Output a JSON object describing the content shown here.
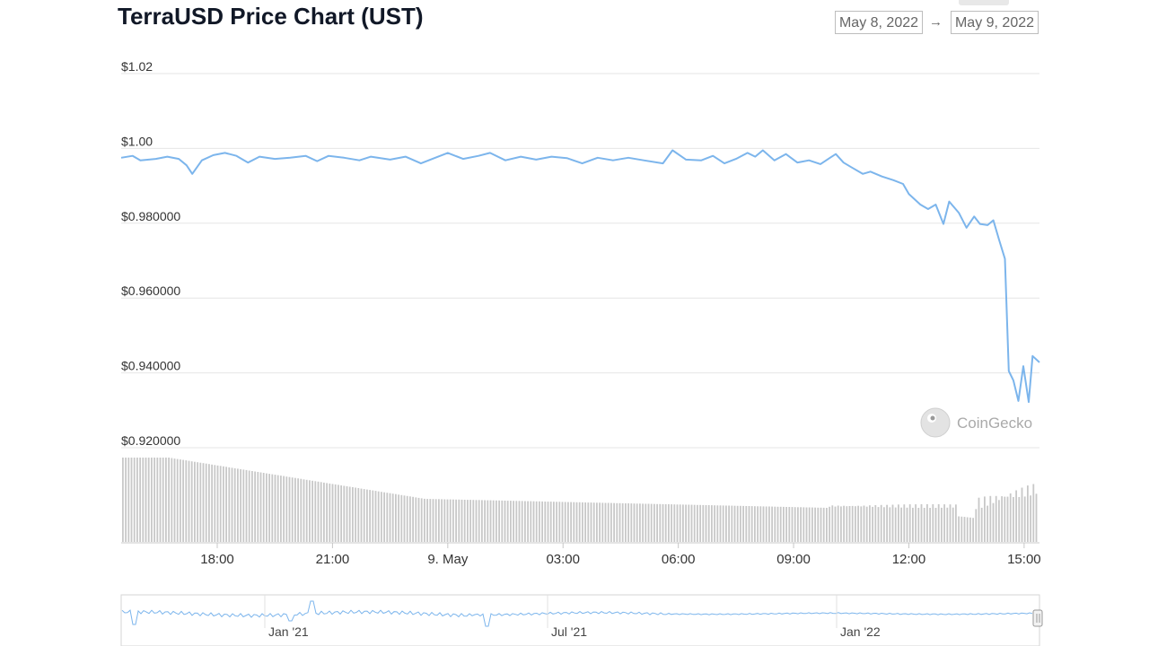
{
  "header": {
    "title": "TerraUSD Price Chart (UST)",
    "date_from": "May 8, 2022",
    "date_to": "May 9, 2022",
    "arrow": "→"
  },
  "watermark": {
    "text": "CoinGecko",
    "icon": "coingecko-logo-icon"
  },
  "colors": {
    "line": "#7cb5ec",
    "volume": "#c8c8c8",
    "grid": "#e6e6e6"
  },
  "chart_data": {
    "type": "line",
    "title": "TerraUSD Price Chart (UST)",
    "yaxis": {
      "min": 0.92,
      "max": 1.02,
      "ticks": [
        {
          "value": 1.02,
          "label": "$1.02"
        },
        {
          "value": 1.0,
          "label": "$1.00"
        },
        {
          "value": 0.98,
          "label": "$0.980000"
        },
        {
          "value": 0.96,
          "label": "$0.960000"
        },
        {
          "value": 0.94,
          "label": "$0.940000"
        },
        {
          "value": 0.92,
          "label": "$0.920000"
        }
      ]
    },
    "xaxis": {
      "start_hour": 15.5,
      "end_hour": 39.4,
      "ticks": [
        {
          "hour": 18,
          "label": "18:00"
        },
        {
          "hour": 21,
          "label": "21:00"
        },
        {
          "hour": 24,
          "label": "9. May"
        },
        {
          "hour": 27,
          "label": "03:00"
        },
        {
          "hour": 30,
          "label": "06:00"
        },
        {
          "hour": 33,
          "label": "09:00"
        },
        {
          "hour": 36,
          "label": "12:00"
        },
        {
          "hour": 39,
          "label": "15:00"
        }
      ]
    },
    "series": [
      {
        "points": [
          [
            15.5,
            0.9975
          ],
          [
            15.8,
            0.998
          ],
          [
            16.0,
            0.9968
          ],
          [
            16.4,
            0.9972
          ],
          [
            16.7,
            0.9978
          ],
          [
            17.0,
            0.9972
          ],
          [
            17.2,
            0.9955
          ],
          [
            17.35,
            0.9932
          ],
          [
            17.6,
            0.9968
          ],
          [
            17.9,
            0.9982
          ],
          [
            18.2,
            0.9988
          ],
          [
            18.5,
            0.998
          ],
          [
            18.8,
            0.9962
          ],
          [
            19.1,
            0.9978
          ],
          [
            19.5,
            0.9972
          ],
          [
            19.9,
            0.9975
          ],
          [
            20.3,
            0.998
          ],
          [
            20.6,
            0.9966
          ],
          [
            20.9,
            0.998
          ],
          [
            21.3,
            0.9975
          ],
          [
            21.7,
            0.9968
          ],
          [
            22.0,
            0.9978
          ],
          [
            22.5,
            0.997
          ],
          [
            22.9,
            0.9978
          ],
          [
            23.3,
            0.996
          ],
          [
            23.6,
            0.9972
          ],
          [
            24.0,
            0.9988
          ],
          [
            24.4,
            0.9972
          ],
          [
            24.8,
            0.998
          ],
          [
            25.1,
            0.9988
          ],
          [
            25.5,
            0.9968
          ],
          [
            25.9,
            0.9978
          ],
          [
            26.3,
            0.997
          ],
          [
            26.7,
            0.9978
          ],
          [
            27.1,
            0.9974
          ],
          [
            27.5,
            0.996
          ],
          [
            27.9,
            0.9975
          ],
          [
            28.3,
            0.9968
          ],
          [
            28.7,
            0.9975
          ],
          [
            29.1,
            0.9968
          ],
          [
            29.6,
            0.996
          ],
          [
            29.85,
            0.9995
          ],
          [
            30.2,
            0.997
          ],
          [
            30.6,
            0.9968
          ],
          [
            30.9,
            0.998
          ],
          [
            31.2,
            0.996
          ],
          [
            31.5,
            0.9972
          ],
          [
            31.8,
            0.9988
          ],
          [
            32.0,
            0.9978
          ],
          [
            32.2,
            0.9995
          ],
          [
            32.5,
            0.9968
          ],
          [
            32.8,
            0.9985
          ],
          [
            33.1,
            0.9962
          ],
          [
            33.4,
            0.9968
          ],
          [
            33.7,
            0.9958
          ],
          [
            33.95,
            0.9975
          ],
          [
            34.1,
            0.9985
          ],
          [
            34.3,
            0.9962
          ],
          [
            34.5,
            0.995
          ],
          [
            34.8,
            0.9932
          ],
          [
            35.0,
            0.9938
          ],
          [
            35.3,
            0.9925
          ],
          [
            35.6,
            0.9915
          ],
          [
            35.85,
            0.9905
          ],
          [
            36.0,
            0.9878
          ],
          [
            36.3,
            0.985
          ],
          [
            36.5,
            0.9838
          ],
          [
            36.7,
            0.985
          ],
          [
            36.9,
            0.9798
          ],
          [
            37.05,
            0.9858
          ],
          [
            37.3,
            0.9828
          ],
          [
            37.5,
            0.9788
          ],
          [
            37.7,
            0.9818
          ],
          [
            37.85,
            0.9798
          ],
          [
            38.05,
            0.9795
          ],
          [
            38.2,
            0.9808
          ],
          [
            38.35,
            0.9755
          ],
          [
            38.5,
            0.9705
          ],
          [
            38.6,
            0.9405
          ],
          [
            38.72,
            0.938
          ],
          [
            38.85,
            0.9325
          ],
          [
            38.98,
            0.9418
          ],
          [
            39.12,
            0.9322
          ],
          [
            39.22,
            0.9445
          ],
          [
            39.4,
            0.9428
          ]
        ]
      }
    ],
    "volume": {
      "note": "relative trading volume bars, no axis labels"
    },
    "navigator": {
      "labels": [
        "Jan '21",
        "Jul '21",
        "Jan '22"
      ]
    }
  }
}
